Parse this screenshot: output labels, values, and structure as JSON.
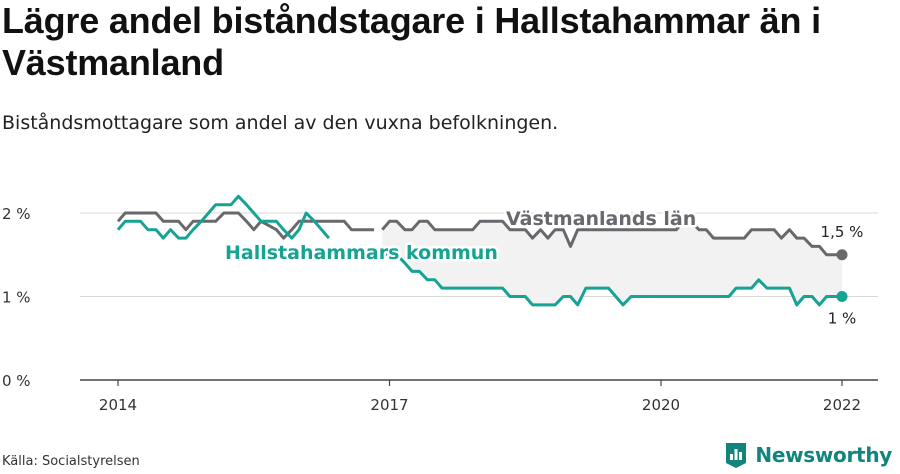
{
  "title": "Lägre andel biståndstagare i Hallstahammar än i Västmanland",
  "subtitle": "Biståndsmottagare som andel av den vuxna befolkningen.",
  "source": "Källa: Socialstyrelsen",
  "brand": {
    "name": "Newsworthy",
    "color": "#12847d"
  },
  "chart_data": {
    "type": "line",
    "x_ticks": [
      "2014",
      "2017",
      "2020",
      "2022"
    ],
    "y_ticks": [
      "0 %",
      "1 %",
      "2 %"
    ],
    "ylim": [
      0,
      2
    ],
    "grid": true,
    "series": [
      {
        "name": "Västmanlands län",
        "color": "#68686d",
        "end_label": "1,5 %",
        "label_position": "inline-top",
        "values": [
          [
            2014.0,
            1.9
          ],
          [
            2014.08,
            2.0
          ],
          [
            2014.33,
            2.0
          ],
          [
            2014.42,
            2.0
          ],
          [
            2014.5,
            1.9
          ],
          [
            2014.67,
            1.9
          ],
          [
            2014.75,
            1.8
          ],
          [
            2014.83,
            1.9
          ],
          [
            2015.0,
            1.9
          ],
          [
            2015.08,
            1.9
          ],
          [
            2015.17,
            2.0
          ],
          [
            2015.33,
            2.0
          ],
          [
            2015.42,
            1.9
          ],
          [
            2015.5,
            1.8
          ],
          [
            2015.58,
            1.9
          ],
          [
            2015.75,
            1.8
          ],
          [
            2015.83,
            1.7
          ],
          [
            2015.92,
            1.8
          ],
          [
            2016.0,
            1.9
          ],
          [
            2016.17,
            1.9
          ],
          [
            2016.25,
            1.9
          ],
          [
            2016.33,
            1.9
          ],
          [
            2016.42,
            1.9
          ],
          [
            2016.5,
            1.9
          ],
          [
            2016.58,
            1.8
          ],
          [
            2016.75,
            1.8
          ],
          [
            2016.83,
            1.8
          ],
          null,
          [
            2016.92,
            1.8
          ],
          [
            2017.0,
            1.9
          ],
          [
            2017.08,
            1.9
          ],
          [
            2017.17,
            1.8
          ],
          [
            2017.25,
            1.8
          ],
          [
            2017.33,
            1.9
          ],
          [
            2017.42,
            1.9
          ],
          [
            2017.5,
            1.8
          ],
          [
            2017.58,
            1.8
          ],
          [
            2017.67,
            1.8
          ],
          [
            2017.75,
            1.8
          ],
          [
            2017.83,
            1.8
          ],
          [
            2017.92,
            1.8
          ],
          [
            2018.0,
            1.9
          ],
          [
            2018.17,
            1.9
          ],
          [
            2018.25,
            1.9
          ],
          [
            2018.33,
            1.8
          ],
          [
            2018.42,
            1.8
          ],
          [
            2018.5,
            1.8
          ],
          [
            2018.58,
            1.7
          ],
          [
            2018.67,
            1.8
          ],
          [
            2018.75,
            1.7
          ],
          [
            2018.83,
            1.8
          ],
          [
            2018.92,
            1.8
          ],
          [
            2019.0,
            1.6
          ],
          [
            2019.08,
            1.8
          ],
          [
            2019.17,
            1.8
          ],
          [
            2019.33,
            1.8
          ],
          [
            2019.5,
            1.8
          ],
          [
            2019.67,
            1.8
          ],
          [
            2019.83,
            1.8
          ],
          [
            2020.0,
            1.8
          ],
          [
            2020.17,
            1.8
          ],
          [
            2020.25,
            1.9
          ],
          [
            2020.33,
            1.9
          ],
          [
            2020.42,
            1.8
          ],
          [
            2020.5,
            1.8
          ],
          [
            2020.58,
            1.7
          ],
          [
            2020.67,
            1.7
          ],
          [
            2020.75,
            1.7
          ],
          [
            2020.83,
            1.7
          ],
          [
            2020.92,
            1.7
          ],
          [
            2021.0,
            1.8
          ],
          [
            2021.08,
            1.8
          ],
          [
            2021.17,
            1.8
          ],
          [
            2021.25,
            1.8
          ],
          [
            2021.33,
            1.7
          ],
          [
            2021.42,
            1.8
          ],
          [
            2021.5,
            1.7
          ],
          [
            2021.58,
            1.7
          ],
          [
            2021.67,
            1.6
          ],
          [
            2021.75,
            1.6
          ],
          [
            2021.83,
            1.5
          ],
          [
            2021.92,
            1.5
          ],
          [
            2022.0,
            1.5
          ]
        ]
      },
      {
        "name": "Hallstahammars kommun",
        "color": "#16a393",
        "end_label": "1 %",
        "label_position": "inline-left",
        "values": [
          [
            2014.0,
            1.8
          ],
          [
            2014.08,
            1.9
          ],
          [
            2014.25,
            1.9
          ],
          [
            2014.33,
            1.8
          ],
          [
            2014.42,
            1.8
          ],
          [
            2014.5,
            1.7
          ],
          [
            2014.58,
            1.8
          ],
          [
            2014.67,
            1.7
          ],
          [
            2014.75,
            1.7
          ],
          [
            2014.83,
            1.8
          ],
          [
            2014.92,
            1.9
          ],
          [
            2015.0,
            2.0
          ],
          [
            2015.08,
            2.1
          ],
          [
            2015.25,
            2.1
          ],
          [
            2015.33,
            2.2
          ],
          [
            2015.42,
            2.1
          ],
          [
            2015.5,
            2.0
          ],
          [
            2015.58,
            1.9
          ],
          [
            2015.67,
            1.9
          ],
          [
            2015.75,
            1.9
          ],
          [
            2015.83,
            1.8
          ],
          [
            2015.92,
            1.7
          ],
          [
            2016.0,
            1.8
          ],
          [
            2016.08,
            2.0
          ],
          [
            2016.17,
            1.9
          ],
          [
            2016.25,
            1.8
          ],
          [
            2016.33,
            1.7
          ],
          null,
          [
            2016.92,
            1.5
          ],
          [
            2017.0,
            1.5
          ],
          [
            2017.08,
            1.5
          ],
          [
            2017.17,
            1.4
          ],
          [
            2017.25,
            1.3
          ],
          [
            2017.33,
            1.3
          ],
          [
            2017.42,
            1.2
          ],
          [
            2017.5,
            1.2
          ],
          [
            2017.58,
            1.1
          ],
          [
            2017.75,
            1.1
          ],
          [
            2017.92,
            1.1
          ],
          [
            2018.08,
            1.1
          ],
          [
            2018.25,
            1.1
          ],
          [
            2018.33,
            1.0
          ],
          [
            2018.5,
            1.0
          ],
          [
            2018.58,
            0.9
          ],
          [
            2018.67,
            0.9
          ],
          [
            2018.83,
            0.9
          ],
          [
            2018.92,
            1.0
          ],
          [
            2019.0,
            1.0
          ],
          [
            2019.08,
            0.9
          ],
          [
            2019.17,
            1.1
          ],
          [
            2019.25,
            1.1
          ],
          [
            2019.42,
            1.1
          ],
          [
            2019.5,
            1.0
          ],
          [
            2019.58,
            0.9
          ],
          [
            2019.67,
            1.0
          ],
          [
            2019.83,
            1.0
          ],
          [
            2020.0,
            1.0
          ],
          [
            2020.17,
            1.0
          ],
          [
            2020.33,
            1.0
          ],
          [
            2020.5,
            1.0
          ],
          [
            2020.67,
            1.0
          ],
          [
            2020.75,
            1.0
          ],
          [
            2020.83,
            1.1
          ],
          [
            2020.92,
            1.1
          ],
          [
            2021.0,
            1.1
          ],
          [
            2021.08,
            1.2
          ],
          [
            2021.17,
            1.1
          ],
          [
            2021.25,
            1.1
          ],
          [
            2021.33,
            1.1
          ],
          [
            2021.42,
            1.1
          ],
          [
            2021.5,
            0.9
          ],
          [
            2021.58,
            1.0
          ],
          [
            2021.67,
            1.0
          ],
          [
            2021.75,
            0.9
          ],
          [
            2021.83,
            1.0
          ],
          [
            2021.92,
            1.0
          ],
          [
            2022.0,
            1.0
          ]
        ]
      }
    ]
  }
}
